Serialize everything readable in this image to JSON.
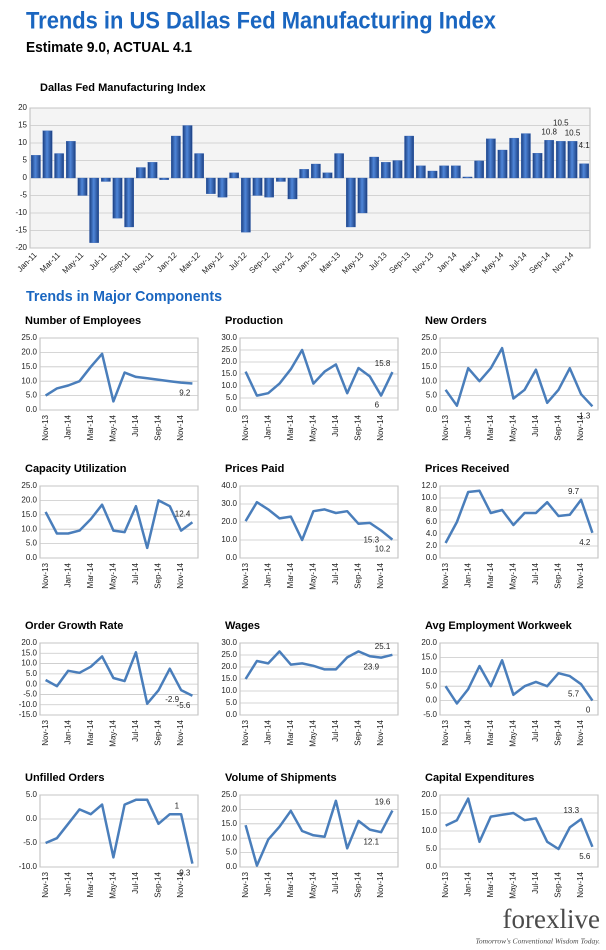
{
  "header": {
    "title": "Trends in US Dallas Fed Manufacturing Index",
    "subtitle": "Estimate 9.0, ACTUAL 4.1",
    "section": "Trends in Major Components"
  },
  "logo": {
    "name": "forexlive",
    "tagline": "Tomorrow's Conventional Wisdom Today."
  },
  "chart_data": [
    {
      "type": "bar",
      "title": "Dallas Fed Manufacturing Index",
      "color": "#2f5fb3",
      "grid": true,
      "categories": [
        "Jan-11",
        null,
        "Mar-11",
        null,
        "May-11",
        null,
        "Jul-11",
        null,
        "Sep-11",
        null,
        "Nov-11",
        null,
        "Jan-12",
        null,
        "Mar-12",
        null,
        "May-12",
        null,
        "Jul-12",
        null,
        "Sep-12",
        null,
        "Nov-12",
        null,
        "Jan-13",
        null,
        "Mar-13",
        null,
        "May-13",
        null,
        "Jul-13",
        null,
        "Sep-13",
        null,
        "Nov-13",
        null,
        "Jan-14",
        null,
        "Mar-14",
        null,
        "May-14",
        null,
        "Jul-14",
        null,
        "Sep-14",
        null,
        "Nov-14",
        null
      ],
      "values": [
        6.5,
        13.5,
        7,
        10.5,
        -5,
        -18.5,
        -1,
        -11.5,
        -14,
        3,
        4.5,
        -0.5,
        12,
        15,
        7,
        -4.5,
        -5.5,
        1.5,
        -15.5,
        -5,
        -5.5,
        -1,
        -6,
        2.5,
        4,
        1.5,
        7,
        -14,
        -10,
        6,
        4.5,
        5,
        12,
        3.5,
        2,
        3.5,
        3.5,
        0.3,
        4.9,
        11.2,
        8,
        11.4,
        12.7,
        7.1,
        10.8,
        10.5,
        10.5,
        4.1
      ],
      "value_labels": [
        null,
        null,
        null,
        null,
        null,
        null,
        null,
        null,
        null,
        null,
        null,
        null,
        null,
        null,
        null,
        null,
        null,
        null,
        null,
        null,
        null,
        null,
        null,
        null,
        null,
        null,
        null,
        null,
        null,
        null,
        null,
        null,
        null,
        null,
        null,
        null,
        null,
        null,
        null,
        null,
        null,
        null,
        null,
        null,
        "10.8",
        "10.5",
        "10.5",
        "4.1"
      ],
      "ylim": [
        -20,
        20
      ],
      "yticks": [
        -20,
        -15,
        -10,
        -5,
        0,
        5,
        10,
        15,
        20
      ]
    },
    {
      "type": "line",
      "title": "Number of Employees",
      "color": "#4a7ebb",
      "grid": true,
      "categories": [
        "Nov-13",
        null,
        "Jan-14",
        null,
        "Mar-14",
        null,
        "May-14",
        null,
        "Jul-14",
        null,
        "Sep-14",
        null,
        "Nov-14",
        null
      ],
      "values": [
        5,
        7.5,
        8.5,
        10,
        15,
        19.5,
        3,
        13,
        11.5,
        11,
        10.5,
        10,
        9.5,
        9.2
      ],
      "value_labels": [
        null,
        null,
        null,
        null,
        null,
        null,
        null,
        null,
        null,
        null,
        null,
        null,
        null,
        "9.2"
      ],
      "ylim": [
        0,
        25
      ],
      "yticks": [
        {
          "value": 0,
          "label": "0.0"
        },
        {
          "value": 5,
          "label": "5.0"
        },
        {
          "value": 10,
          "label": "10.0"
        },
        {
          "value": 15,
          "label": "15.0"
        },
        {
          "value": 20,
          "label": "20.0"
        },
        {
          "value": 25,
          "label": "25.0"
        }
      ]
    },
    {
      "type": "line",
      "title": "Production",
      "color": "#4a7ebb",
      "grid": true,
      "categories": [
        "Nov-13",
        null,
        "Jan-14",
        null,
        "Mar-14",
        null,
        "May-14",
        null,
        "Jul-14",
        null,
        "Sep-14",
        null,
        "Nov-14",
        null
      ],
      "values": [
        16,
        6,
        7,
        11,
        17,
        25,
        11,
        16,
        19,
        7,
        17.5,
        14,
        6,
        15.8
      ],
      "value_labels": [
        null,
        null,
        null,
        null,
        null,
        null,
        null,
        null,
        null,
        null,
        null,
        null,
        "6",
        "15.8"
      ],
      "ylim": [
        0,
        30
      ],
      "yticks": [
        {
          "value": 0,
          "label": "0.0"
        },
        {
          "value": 5,
          "label": "5.0"
        },
        {
          "value": 10,
          "label": "10.0"
        },
        {
          "value": 15,
          "label": "15.0"
        },
        {
          "value": 20,
          "label": "20.0"
        },
        {
          "value": 25,
          "label": "25.0"
        },
        {
          "value": 30,
          "label": "30.0"
        }
      ]
    },
    {
      "type": "line",
      "title": "New Orders",
      "color": "#4a7ebb",
      "grid": true,
      "categories": [
        "Nov-13",
        null,
        "Jan-14",
        null,
        "Mar-14",
        null,
        "May-14",
        null,
        "Jul-14",
        null,
        "Sep-14",
        null,
        "Nov-14",
        null
      ],
      "values": [
        7,
        1.5,
        14.5,
        10,
        14.5,
        21.5,
        4,
        7,
        14,
        2.5,
        7,
        14.5,
        5.5,
        1.3
      ],
      "value_labels": [
        null,
        null,
        null,
        null,
        null,
        null,
        null,
        null,
        null,
        null,
        null,
        null,
        null,
        "1.3"
      ],
      "ylim": [
        0,
        25
      ],
      "yticks": [
        {
          "value": 0,
          "label": "0.0"
        },
        {
          "value": 5,
          "label": "5.0"
        },
        {
          "value": 10,
          "label": "10.0"
        },
        {
          "value": 15,
          "label": "15.0"
        },
        {
          "value": 20,
          "label": "20.0"
        },
        {
          "value": 25,
          "label": "25.0"
        }
      ]
    },
    {
      "type": "line",
      "title": "Capacity Utilization",
      "color": "#4a7ebb",
      "grid": true,
      "categories": [
        "Nov-13",
        null,
        "Jan-14",
        null,
        "Mar-14",
        null,
        "May-14",
        null,
        "Jul-14",
        null,
        "Sep-14",
        null,
        "Nov-14",
        null
      ],
      "values": [
        16,
        8.5,
        8.5,
        9.5,
        13.5,
        18.5,
        9.5,
        9,
        18,
        3.5,
        20,
        18,
        9.5,
        12.4
      ],
      "value_labels": [
        null,
        null,
        null,
        null,
        null,
        null,
        null,
        null,
        null,
        null,
        null,
        null,
        null,
        "12.4"
      ],
      "ylim": [
        0,
        25
      ],
      "yticks": [
        {
          "value": 0,
          "label": "0.0"
        },
        {
          "value": 5,
          "label": "5.0"
        },
        {
          "value": 10,
          "label": "10.0"
        },
        {
          "value": 15,
          "label": "15.0"
        },
        {
          "value": 20,
          "label": "20.0"
        },
        {
          "value": 25,
          "label": "25.0"
        }
      ]
    },
    {
      "type": "line",
      "title": "Prices Paid",
      "color": "#4a7ebb",
      "grid": true,
      "categories": [
        "Nov-13",
        null,
        "Jan-14",
        null,
        "Mar-14",
        null,
        "May-14",
        null,
        "Jul-14",
        null,
        "Sep-14",
        null,
        "Nov-14",
        null
      ],
      "values": [
        20.5,
        31,
        27,
        22,
        23,
        10,
        26,
        27,
        25,
        26,
        19,
        19.5,
        15.3,
        10.2
      ],
      "value_labels": [
        null,
        null,
        null,
        null,
        null,
        null,
        null,
        null,
        null,
        null,
        null,
        null,
        "15.3",
        "10.2"
      ],
      "ylim": [
        0,
        40
      ],
      "yticks": [
        {
          "value": 0,
          "label": "0.0"
        },
        {
          "value": 10,
          "label": "10.0"
        },
        {
          "value": 20,
          "label": "20.0"
        },
        {
          "value": 30,
          "label": "30.0"
        },
        {
          "value": 40,
          "label": "40.0"
        }
      ]
    },
    {
      "type": "line",
      "title": "Prices Received",
      "color": "#4a7ebb",
      "grid": true,
      "categories": [
        "Nov-13",
        null,
        "Jan-14",
        null,
        "Mar-14",
        null,
        "May-14",
        null,
        "Jul-14",
        null,
        "Sep-14",
        null,
        "Nov-14",
        null
      ],
      "values": [
        2.5,
        6,
        11,
        11.2,
        7.5,
        8,
        5.5,
        7.5,
        7.5,
        9.3,
        7,
        7.2,
        9.7,
        4.2
      ],
      "value_labels": [
        null,
        null,
        null,
        null,
        null,
        null,
        null,
        null,
        null,
        null,
        null,
        null,
        "9.7",
        "4.2"
      ],
      "ylim": [
        0,
        12
      ],
      "yticks": [
        {
          "value": 0,
          "label": "0.0"
        },
        {
          "value": 2,
          "label": "2.0"
        },
        {
          "value": 4,
          "label": "4.0"
        },
        {
          "value": 6,
          "label": "6.0"
        },
        {
          "value": 8,
          "label": "8.0"
        },
        {
          "value": 10,
          "label": "10.0"
        },
        {
          "value": 12,
          "label": "12.0"
        }
      ]
    },
    {
      "type": "line",
      "title": "Order Growth Rate",
      "color": "#4a7ebb",
      "grid": true,
      "categories": [
        "Nov-13",
        null,
        "Jan-14",
        null,
        "Mar-14",
        null,
        "May-14",
        null,
        "Jul-14",
        null,
        "Sep-14",
        null,
        "Nov-14",
        null
      ],
      "values": [
        2,
        -1,
        6.5,
        5.5,
        8.5,
        13.5,
        3,
        1.5,
        15.5,
        -9.5,
        -3,
        7.5,
        -2.9,
        -5.6
      ],
      "value_labels": [
        null,
        null,
        null,
        null,
        null,
        null,
        null,
        null,
        null,
        null,
        null,
        null,
        "-2.9",
        "-5.6"
      ],
      "ylim": [
        -15,
        20
      ],
      "yticks": [
        {
          "value": -15,
          "label": "-15.0"
        },
        {
          "value": -10,
          "label": "-10.0"
        },
        {
          "value": -5,
          "label": "-5.0"
        },
        {
          "value": 0,
          "label": "0.0"
        },
        {
          "value": 5,
          "label": "5.0"
        },
        {
          "value": 10,
          "label": "10.0"
        },
        {
          "value": 15,
          "label": "15.0"
        },
        {
          "value": 20,
          "label": "20.0"
        }
      ]
    },
    {
      "type": "line",
      "title": "Wages",
      "color": "#4a7ebb",
      "grid": true,
      "categories": [
        "Nov-13",
        null,
        "Jan-14",
        null,
        "Mar-14",
        null,
        "May-14",
        null,
        "Jul-14",
        null,
        "Sep-14",
        null,
        "Nov-14",
        null
      ],
      "values": [
        15,
        22.5,
        21.5,
        26.5,
        21,
        21.5,
        20.5,
        19,
        19,
        24,
        26.5,
        24.5,
        23.9,
        25.1
      ],
      "value_labels": [
        null,
        null,
        null,
        null,
        null,
        null,
        null,
        null,
        null,
        null,
        null,
        null,
        "23.9",
        "25.1"
      ],
      "ylim": [
        0,
        30
      ],
      "yticks": [
        {
          "value": 0,
          "label": "0.0"
        },
        {
          "value": 5,
          "label": "5.0"
        },
        {
          "value": 10,
          "label": "10.0"
        },
        {
          "value": 15,
          "label": "15.0"
        },
        {
          "value": 20,
          "label": "20.0"
        },
        {
          "value": 25,
          "label": "25.0"
        },
        {
          "value": 30,
          "label": "30.0"
        }
      ]
    },
    {
      "type": "line",
      "title": "Avg Employment Workweek",
      "color": "#4a7ebb",
      "grid": true,
      "categories": [
        "Nov-13",
        null,
        "Jan-14",
        null,
        "Mar-14",
        null,
        "May-14",
        null,
        "Jul-14",
        null,
        "Sep-14",
        null,
        "Nov-14",
        null
      ],
      "values": [
        5,
        -1,
        4,
        12,
        5,
        14,
        2,
        5,
        6.5,
        5,
        9.5,
        8.5,
        5.7,
        0
      ],
      "value_labels": [
        null,
        null,
        null,
        null,
        null,
        null,
        null,
        null,
        null,
        null,
        null,
        null,
        "5.7",
        "0"
      ],
      "ylim": [
        -5,
        20
      ],
      "yticks": [
        {
          "value": -5,
          "label": "-5.0"
        },
        {
          "value": 0,
          "label": "0.0"
        },
        {
          "value": 5,
          "label": "5.0"
        },
        {
          "value": 10,
          "label": "10.0"
        },
        {
          "value": 15,
          "label": "15.0"
        },
        {
          "value": 20,
          "label": "20.0"
        }
      ]
    },
    {
      "type": "line",
      "title": "Unfilled Orders",
      "color": "#4a7ebb",
      "grid": true,
      "categories": [
        "Nov-13",
        null,
        "Jan-14",
        null,
        "Mar-14",
        null,
        "May-14",
        null,
        "Jul-14",
        null,
        "Sep-14",
        null,
        "Nov-14",
        null
      ],
      "values": [
        -5,
        -4,
        -1,
        2,
        1,
        3,
        -8,
        3,
        4,
        4,
        -1,
        1,
        1,
        -9.3
      ],
      "value_labels": [
        null,
        null,
        null,
        null,
        null,
        null,
        null,
        null,
        null,
        null,
        null,
        null,
        "1",
        "-9.3"
      ],
      "ylim": [
        -10,
        5
      ],
      "yticks": [
        {
          "value": -10,
          "label": "-10.0"
        },
        {
          "value": -5,
          "label": "-5.0"
        },
        {
          "value": 0,
          "label": "0.0"
        },
        {
          "value": 5,
          "label": "5.0"
        }
      ]
    },
    {
      "type": "line",
      "title": "Volume of Shipments",
      "color": "#4a7ebb",
      "grid": true,
      "categories": [
        "Nov-13",
        null,
        "Jan-14",
        null,
        "Mar-14",
        null,
        "May-14",
        null,
        "Jul-14",
        null,
        "Sep-14",
        null,
        "Nov-14",
        null
      ],
      "values": [
        14.5,
        0.5,
        9.5,
        14,
        19.5,
        12.5,
        11,
        10.5,
        23,
        6.5,
        16,
        13,
        12.1,
        19.6
      ],
      "value_labels": [
        null,
        null,
        null,
        null,
        null,
        null,
        null,
        null,
        null,
        null,
        null,
        null,
        "12.1",
        "19.6"
      ],
      "ylim": [
        0,
        25
      ],
      "yticks": [
        {
          "value": 0,
          "label": "0.0"
        },
        {
          "value": 5,
          "label": "5.0"
        },
        {
          "value": 10,
          "label": "10.0"
        },
        {
          "value": 15,
          "label": "15.0"
        },
        {
          "value": 20,
          "label": "20.0"
        },
        {
          "value": 25,
          "label": "25.0"
        }
      ]
    },
    {
      "type": "line",
      "title": "Capital Expenditures",
      "color": "#4a7ebb",
      "grid": true,
      "categories": [
        "Nov-13",
        null,
        "Jan-14",
        null,
        "Mar-14",
        null,
        "May-14",
        null,
        "Jul-14",
        null,
        "Sep-14",
        null,
        "Nov-14",
        null
      ],
      "values": [
        11.5,
        13,
        19,
        7,
        14,
        14.5,
        15,
        13,
        13.5,
        7,
        5,
        11,
        13.3,
        5.6
      ],
      "value_labels": [
        null,
        null,
        null,
        null,
        null,
        null,
        null,
        null,
        null,
        null,
        null,
        null,
        "13.3",
        "5.6"
      ],
      "ylim": [
        0,
        20
      ],
      "yticks": [
        {
          "value": 0,
          "label": "0.0"
        },
        {
          "value": 5,
          "label": "5.0"
        },
        {
          "value": 10,
          "label": "10.0"
        },
        {
          "value": 15,
          "label": "15.0"
        },
        {
          "value": 20,
          "label": "20.0"
        }
      ]
    }
  ]
}
